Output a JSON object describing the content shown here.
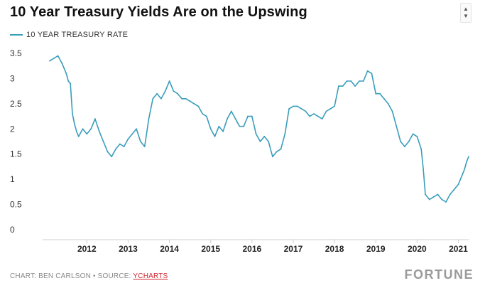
{
  "chart_data": {
    "type": "line",
    "title": "10 Year Treasury Yields Are on the Upswing",
    "legend": [
      "10 YEAR TREASURY RATE"
    ],
    "legend_position": "top-left",
    "xlabel": "",
    "ylabel": "",
    "xlim": [
      2011.1,
      2021.25
    ],
    "ylim": [
      0,
      3.5
    ],
    "y_ticks": [
      "0",
      "0.5",
      "1",
      "1.5",
      "2",
      "2.5",
      "3",
      "3.5"
    ],
    "x_ticks": [
      "2012",
      "2013",
      "2014",
      "2015",
      "2016",
      "2017",
      "2018",
      "2019",
      "2020",
      "2021"
    ],
    "grid": false,
    "color": "#3a9dbb",
    "series": [
      {
        "name": "10 YEAR TREASURY RATE",
        "x": [
          2011.1,
          2011.2,
          2011.3,
          2011.4,
          2011.5,
          2011.55,
          2011.6,
          2011.65,
          2011.7,
          2011.75,
          2011.8,
          2011.9,
          2012.0,
          2012.1,
          2012.2,
          2012.3,
          2012.4,
          2012.5,
          2012.6,
          2012.7,
          2012.8,
          2012.9,
          2013.0,
          2013.1,
          2013.2,
          2013.3,
          2013.4,
          2013.5,
          2013.6,
          2013.7,
          2013.8,
          2013.9,
          2014.0,
          2014.1,
          2014.2,
          2014.3,
          2014.4,
          2014.5,
          2014.6,
          2014.7,
          2014.8,
          2014.9,
          2015.0,
          2015.1,
          2015.2,
          2015.3,
          2015.4,
          2015.5,
          2015.6,
          2015.7,
          2015.8,
          2015.9,
          2016.0,
          2016.1,
          2016.2,
          2016.3,
          2016.4,
          2016.5,
          2016.6,
          2016.7,
          2016.8,
          2016.9,
          2017.0,
          2017.1,
          2017.2,
          2017.3,
          2017.4,
          2017.5,
          2017.6,
          2017.7,
          2017.8,
          2017.9,
          2018.0,
          2018.1,
          2018.2,
          2018.3,
          2018.4,
          2018.5,
          2018.6,
          2018.7,
          2018.8,
          2018.9,
          2019.0,
          2019.1,
          2019.2,
          2019.3,
          2019.4,
          2019.5,
          2019.6,
          2019.7,
          2019.8,
          2019.9,
          2020.0,
          2020.1,
          2020.15,
          2020.2,
          2020.3,
          2020.4,
          2020.5,
          2020.6,
          2020.7,
          2020.8,
          2020.9,
          2021.0,
          2021.1,
          2021.15,
          2021.2,
          2021.25
        ],
        "values": [
          3.35,
          3.4,
          3.45,
          3.3,
          3.1,
          2.95,
          2.9,
          2.3,
          2.1,
          1.95,
          1.85,
          2.0,
          1.9,
          2.0,
          2.2,
          1.95,
          1.75,
          1.55,
          1.45,
          1.6,
          1.7,
          1.65,
          1.8,
          1.9,
          2.0,
          1.75,
          1.65,
          2.2,
          2.6,
          2.7,
          2.6,
          2.75,
          2.95,
          2.75,
          2.7,
          2.6,
          2.6,
          2.55,
          2.5,
          2.45,
          2.3,
          2.25,
          2.0,
          1.85,
          2.05,
          1.95,
          2.2,
          2.35,
          2.2,
          2.05,
          2.05,
          2.25,
          2.25,
          1.9,
          1.75,
          1.85,
          1.75,
          1.45,
          1.55,
          1.6,
          1.9,
          2.4,
          2.45,
          2.45,
          2.4,
          2.35,
          2.25,
          2.3,
          2.25,
          2.2,
          2.35,
          2.4,
          2.45,
          2.85,
          2.85,
          2.95,
          2.95,
          2.85,
          2.95,
          2.95,
          3.15,
          3.1,
          2.7,
          2.7,
          2.6,
          2.5,
          2.35,
          2.05,
          1.75,
          1.65,
          1.75,
          1.9,
          1.85,
          1.6,
          1.2,
          0.7,
          0.6,
          0.65,
          0.7,
          0.6,
          0.55,
          0.7,
          0.8,
          0.9,
          1.1,
          1.2,
          1.35,
          1.45
        ]
      }
    ]
  },
  "header": {
    "title": "10 Year Treasury Yields Are on the Upswing",
    "scroll_up": "▲",
    "scroll_down": "▼"
  },
  "legend": {
    "label": "10 YEAR TREASURY RATE"
  },
  "footer": {
    "credit": "CHART: BEN CARLSON • SOURCE: ",
    "source_link": "YCHARTS",
    "brand": "FORTUNE"
  }
}
